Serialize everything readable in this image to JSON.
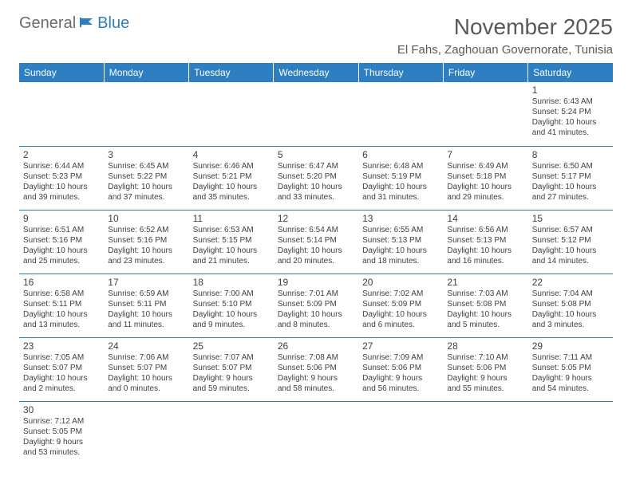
{
  "logo": {
    "part1": "General",
    "part2": "Blue"
  },
  "title": "November 2025",
  "location": "El Fahs, Zaghouan Governorate, Tunisia",
  "colors": {
    "header_bg": "#2d7fc1",
    "header_text": "#ffffff",
    "text": "#595959",
    "cell_text": "#404040",
    "border": "#2d7fc1"
  },
  "days_of_week": [
    "Sunday",
    "Monday",
    "Tuesday",
    "Wednesday",
    "Thursday",
    "Friday",
    "Saturday"
  ],
  "weeks": [
    [
      null,
      null,
      null,
      null,
      null,
      null,
      {
        "n": "1",
        "sr": "Sunrise: 6:43 AM",
        "ss": "Sunset: 5:24 PM",
        "d1": "Daylight: 10 hours",
        "d2": "and 41 minutes."
      }
    ],
    [
      {
        "n": "2",
        "sr": "Sunrise: 6:44 AM",
        "ss": "Sunset: 5:23 PM",
        "d1": "Daylight: 10 hours",
        "d2": "and 39 minutes."
      },
      {
        "n": "3",
        "sr": "Sunrise: 6:45 AM",
        "ss": "Sunset: 5:22 PM",
        "d1": "Daylight: 10 hours",
        "d2": "and 37 minutes."
      },
      {
        "n": "4",
        "sr": "Sunrise: 6:46 AM",
        "ss": "Sunset: 5:21 PM",
        "d1": "Daylight: 10 hours",
        "d2": "and 35 minutes."
      },
      {
        "n": "5",
        "sr": "Sunrise: 6:47 AM",
        "ss": "Sunset: 5:20 PM",
        "d1": "Daylight: 10 hours",
        "d2": "and 33 minutes."
      },
      {
        "n": "6",
        "sr": "Sunrise: 6:48 AM",
        "ss": "Sunset: 5:19 PM",
        "d1": "Daylight: 10 hours",
        "d2": "and 31 minutes."
      },
      {
        "n": "7",
        "sr": "Sunrise: 6:49 AM",
        "ss": "Sunset: 5:18 PM",
        "d1": "Daylight: 10 hours",
        "d2": "and 29 minutes."
      },
      {
        "n": "8",
        "sr": "Sunrise: 6:50 AM",
        "ss": "Sunset: 5:17 PM",
        "d1": "Daylight: 10 hours",
        "d2": "and 27 minutes."
      }
    ],
    [
      {
        "n": "9",
        "sr": "Sunrise: 6:51 AM",
        "ss": "Sunset: 5:16 PM",
        "d1": "Daylight: 10 hours",
        "d2": "and 25 minutes."
      },
      {
        "n": "10",
        "sr": "Sunrise: 6:52 AM",
        "ss": "Sunset: 5:16 PM",
        "d1": "Daylight: 10 hours",
        "d2": "and 23 minutes."
      },
      {
        "n": "11",
        "sr": "Sunrise: 6:53 AM",
        "ss": "Sunset: 5:15 PM",
        "d1": "Daylight: 10 hours",
        "d2": "and 21 minutes."
      },
      {
        "n": "12",
        "sr": "Sunrise: 6:54 AM",
        "ss": "Sunset: 5:14 PM",
        "d1": "Daylight: 10 hours",
        "d2": "and 20 minutes."
      },
      {
        "n": "13",
        "sr": "Sunrise: 6:55 AM",
        "ss": "Sunset: 5:13 PM",
        "d1": "Daylight: 10 hours",
        "d2": "and 18 minutes."
      },
      {
        "n": "14",
        "sr": "Sunrise: 6:56 AM",
        "ss": "Sunset: 5:13 PM",
        "d1": "Daylight: 10 hours",
        "d2": "and 16 minutes."
      },
      {
        "n": "15",
        "sr": "Sunrise: 6:57 AM",
        "ss": "Sunset: 5:12 PM",
        "d1": "Daylight: 10 hours",
        "d2": "and 14 minutes."
      }
    ],
    [
      {
        "n": "16",
        "sr": "Sunrise: 6:58 AM",
        "ss": "Sunset: 5:11 PM",
        "d1": "Daylight: 10 hours",
        "d2": "and 13 minutes."
      },
      {
        "n": "17",
        "sr": "Sunrise: 6:59 AM",
        "ss": "Sunset: 5:11 PM",
        "d1": "Daylight: 10 hours",
        "d2": "and 11 minutes."
      },
      {
        "n": "18",
        "sr": "Sunrise: 7:00 AM",
        "ss": "Sunset: 5:10 PM",
        "d1": "Daylight: 10 hours",
        "d2": "and 9 minutes."
      },
      {
        "n": "19",
        "sr": "Sunrise: 7:01 AM",
        "ss": "Sunset: 5:09 PM",
        "d1": "Daylight: 10 hours",
        "d2": "and 8 minutes."
      },
      {
        "n": "20",
        "sr": "Sunrise: 7:02 AM",
        "ss": "Sunset: 5:09 PM",
        "d1": "Daylight: 10 hours",
        "d2": "and 6 minutes."
      },
      {
        "n": "21",
        "sr": "Sunrise: 7:03 AM",
        "ss": "Sunset: 5:08 PM",
        "d1": "Daylight: 10 hours",
        "d2": "and 5 minutes."
      },
      {
        "n": "22",
        "sr": "Sunrise: 7:04 AM",
        "ss": "Sunset: 5:08 PM",
        "d1": "Daylight: 10 hours",
        "d2": "and 3 minutes."
      }
    ],
    [
      {
        "n": "23",
        "sr": "Sunrise: 7:05 AM",
        "ss": "Sunset: 5:07 PM",
        "d1": "Daylight: 10 hours",
        "d2": "and 2 minutes."
      },
      {
        "n": "24",
        "sr": "Sunrise: 7:06 AM",
        "ss": "Sunset: 5:07 PM",
        "d1": "Daylight: 10 hours",
        "d2": "and 0 minutes."
      },
      {
        "n": "25",
        "sr": "Sunrise: 7:07 AM",
        "ss": "Sunset: 5:07 PM",
        "d1": "Daylight: 9 hours",
        "d2": "and 59 minutes."
      },
      {
        "n": "26",
        "sr": "Sunrise: 7:08 AM",
        "ss": "Sunset: 5:06 PM",
        "d1": "Daylight: 9 hours",
        "d2": "and 58 minutes."
      },
      {
        "n": "27",
        "sr": "Sunrise: 7:09 AM",
        "ss": "Sunset: 5:06 PM",
        "d1": "Daylight: 9 hours",
        "d2": "and 56 minutes."
      },
      {
        "n": "28",
        "sr": "Sunrise: 7:10 AM",
        "ss": "Sunset: 5:06 PM",
        "d1": "Daylight: 9 hours",
        "d2": "and 55 minutes."
      },
      {
        "n": "29",
        "sr": "Sunrise: 7:11 AM",
        "ss": "Sunset: 5:05 PM",
        "d1": "Daylight: 9 hours",
        "d2": "and 54 minutes."
      }
    ],
    [
      {
        "n": "30",
        "sr": "Sunrise: 7:12 AM",
        "ss": "Sunset: 5:05 PM",
        "d1": "Daylight: 9 hours",
        "d2": "and 53 minutes."
      },
      null,
      null,
      null,
      null,
      null,
      null
    ]
  ]
}
